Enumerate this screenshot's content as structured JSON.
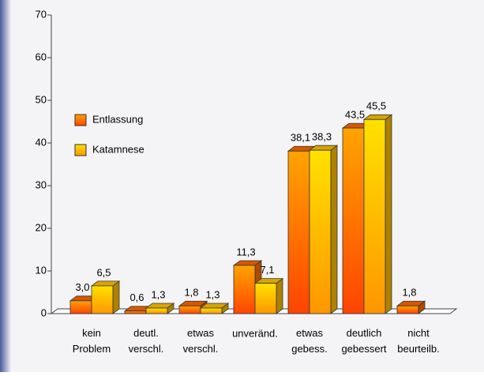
{
  "chart_data": {
    "type": "bar3d",
    "categories": [
      "kein Problem",
      "deutl. verschl.",
      "etwas verschl.",
      "unveränd.",
      "etwas gebess.",
      "deutlich gebessert",
      "nicht beurteilb."
    ],
    "series": [
      {
        "name": "Entlassung",
        "color": "#ff5a00",
        "values": [
          3.0,
          0.6,
          1.8,
          11.3,
          38.1,
          43.5,
          1.8
        ],
        "value_labels": [
          "3,0",
          "0,6",
          "1,8",
          "11,3",
          "38,1",
          "43,5",
          "1,8"
        ]
      },
      {
        "name": "Katamnese",
        "color": "#ffc800",
        "values": [
          6.5,
          1.3,
          1.3,
          7.1,
          38.3,
          45.5,
          null
        ],
        "value_labels": [
          "6,5",
          "1,3",
          "1,3",
          "7,1",
          "38,3",
          "45,5",
          null
        ]
      }
    ],
    "ylim": [
      0,
      70
    ],
    "yticks": [
      0,
      10,
      20,
      30,
      40,
      50,
      60,
      70
    ],
    "legend": "upper left"
  }
}
